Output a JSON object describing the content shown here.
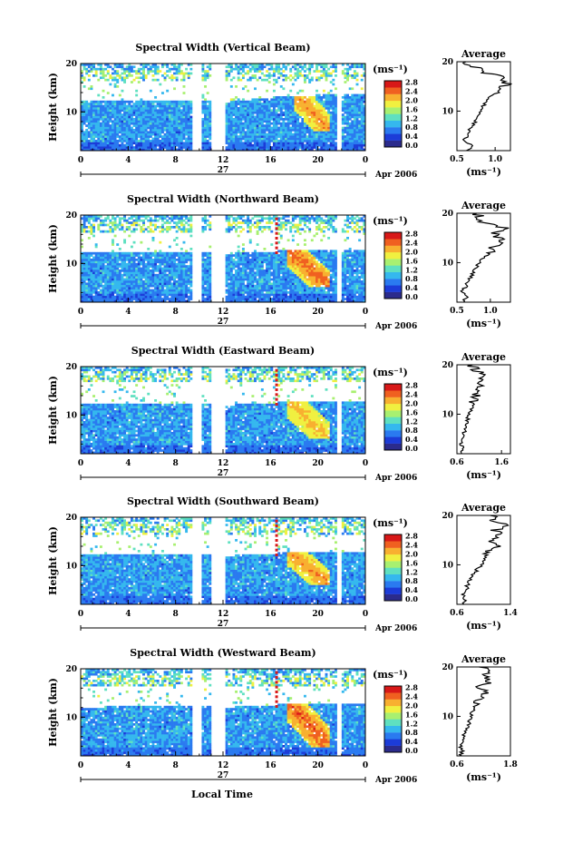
{
  "figure": {
    "xlabel": "Local Time",
    "day_label": "27",
    "date_label": "Apr 2006",
    "colorbar_unit": "(ms⁻¹)",
    "colorbar_ticks": [
      "2.8",
      "2.4",
      "2.0",
      "1.6",
      "1.2",
      "0.8",
      "0.4",
      "0.0"
    ],
    "profile_title": "Average",
    "profile_xlabel": "(ms⁻¹)",
    "ylabel": "Height (km)",
    "ytick_labels": [
      "20",
      "10"
    ],
    "xtick_labels": [
      "0",
      "4",
      "8",
      "12",
      "16",
      "20",
      "0"
    ],
    "colors": {
      "scale": [
        "#2b2b8c",
        "#1c3cd8",
        "#2a7af0",
        "#35b8ee",
        "#5fe0c0",
        "#a8f070",
        "#f0f040",
        "#f8b030",
        "#f06020",
        "#d81818"
      ],
      "profile_line": "#000000"
    }
  },
  "chart_data": [
    {
      "type": "heatmap",
      "title": "Spectral Width (Vertical Beam)",
      "xlabel": "Local Time",
      "ylabel": "Height (km)",
      "xlim": [
        0,
        24
      ],
      "ylim": [
        2,
        20
      ],
      "gaps_hours": [
        [
          9.4,
          10.2
        ],
        [
          11.1,
          12.1
        ],
        [
          21.7,
          22.0
        ]
      ],
      "upper_cutoff_km": [
        [
          0,
          12.5
        ],
        [
          8,
          12.5
        ],
        [
          12,
          12.0
        ],
        [
          16,
          13.0
        ],
        [
          20,
          13.5
        ],
        [
          24,
          13.5
        ]
      ],
      "upper_layer_km": [
        16.5,
        18.5
      ],
      "enhanced_region": {
        "t_range": [
          18,
          21
        ],
        "h_range": [
          6,
          14
        ],
        "value_ms": 2.4
      },
      "colorbar_range": [
        0.0,
        2.8
      ],
      "profile": {
        "title": "Average",
        "xlabel": "(ms⁻¹)",
        "xticks": [
          "0.5",
          "1.0"
        ],
        "xlim": [
          0.5,
          1.2
        ],
        "heights": [
          2,
          3,
          4,
          5,
          6,
          7,
          8,
          9,
          10,
          11,
          12,
          13,
          14,
          15,
          16,
          17,
          18,
          19,
          20
        ],
        "values": [
          0.62,
          0.72,
          0.58,
          0.64,
          0.66,
          0.7,
          0.74,
          0.76,
          0.8,
          0.84,
          0.9,
          0.96,
          1.0,
          1.12,
          1.16,
          1.05,
          0.82,
          0.72,
          0.62
        ]
      }
    },
    {
      "type": "heatmap",
      "title": "Spectral Width (Northward Beam)",
      "xlabel": "Local Time",
      "ylabel": "Height (km)",
      "xlim": [
        0,
        24
      ],
      "ylim": [
        2,
        20
      ],
      "gaps_hours": [
        [
          9.4,
          10.2
        ],
        [
          11.1,
          12.1
        ],
        [
          21.7,
          22.0
        ]
      ],
      "upper_cutoff_km": [
        [
          0,
          12.5
        ],
        [
          8,
          12.5
        ],
        [
          12,
          12.0
        ],
        [
          16,
          12.5
        ],
        [
          20,
          13.0
        ],
        [
          24,
          13.0
        ]
      ],
      "upper_layer_km": [
        16.5,
        18.5
      ],
      "enhanced_region": {
        "t_range": [
          17.5,
          21
        ],
        "h_range": [
          5,
          13
        ],
        "value_ms": 2.6
      },
      "colorbar_range": [
        0.0,
        2.8
      ],
      "profile": {
        "title": "Average",
        "xlabel": "(ms⁻¹)",
        "xticks": [
          "0.5",
          "1.0"
        ],
        "xlim": [
          0.5,
          1.3
        ],
        "heights": [
          2,
          3,
          4,
          5,
          6,
          7,
          8,
          9,
          10,
          11,
          12,
          13,
          14,
          15,
          16,
          17,
          18,
          19,
          20
        ],
        "values": [
          0.6,
          0.64,
          0.58,
          0.62,
          0.66,
          0.7,
          0.74,
          0.78,
          0.84,
          0.9,
          0.98,
          1.05,
          1.1,
          1.15,
          1.05,
          1.2,
          0.9,
          0.85,
          0.8
        ]
      }
    },
    {
      "type": "heatmap",
      "title": "Spectral Width (Eastward Beam)",
      "xlabel": "Local Time",
      "ylabel": "Height (km)",
      "xlim": [
        0,
        24
      ],
      "ylim": [
        2,
        20
      ],
      "gaps_hours": [
        [
          9.4,
          10.2
        ],
        [
          11.1,
          12.1
        ],
        [
          21.7,
          22.0
        ]
      ],
      "upper_cutoff_km": [
        [
          0,
          12.5
        ],
        [
          8,
          12.5
        ],
        [
          12,
          12.0
        ],
        [
          16,
          12.5
        ],
        [
          20,
          13.0
        ],
        [
          24,
          13.0
        ]
      ],
      "upper_layer_km": [
        17,
        19
      ],
      "enhanced_region": {
        "t_range": [
          17.5,
          21
        ],
        "h_range": [
          5,
          13
        ],
        "value_ms": 2.2
      },
      "colorbar_range": [
        0.0,
        2.8
      ],
      "profile": {
        "title": "Average",
        "xlabel": "(ms⁻¹)",
        "xticks": [
          "0.6",
          "1.6"
        ],
        "xlim": [
          0.6,
          1.8
        ],
        "heights": [
          2,
          3,
          4,
          5,
          6,
          7,
          8,
          9,
          10,
          11,
          12,
          13,
          14,
          15,
          16,
          17,
          18,
          19,
          20
        ],
        "values": [
          0.7,
          0.72,
          0.68,
          0.74,
          0.76,
          0.78,
          0.8,
          0.84,
          0.88,
          0.92,
          0.96,
          1.0,
          1.02,
          1.1,
          1.2,
          1.05,
          1.15,
          1.0,
          0.95
        ]
      }
    },
    {
      "type": "heatmap",
      "title": "Spectral Width (Southward Beam)",
      "xlabel": "Local Time",
      "ylabel": "Height (km)",
      "xlim": [
        0,
        24
      ],
      "ylim": [
        2,
        20
      ],
      "gaps_hours": [
        [
          9.4,
          10.2
        ],
        [
          11.1,
          12.1
        ],
        [
          21.7,
          22.0
        ]
      ],
      "upper_cutoff_km": [
        [
          0,
          12.5
        ],
        [
          8,
          12.5
        ],
        [
          12,
          12.0
        ],
        [
          16,
          12.5
        ],
        [
          20,
          13.0
        ],
        [
          24,
          13.0
        ]
      ],
      "upper_layer_km": [
        16.5,
        19
      ],
      "enhanced_region": {
        "t_range": [
          17.5,
          21
        ],
        "h_range": [
          6,
          13
        ],
        "value_ms": 2.4
      },
      "colorbar_range": [
        0.0,
        2.8
      ],
      "profile": {
        "title": "Average",
        "xlabel": "(ms⁻¹)",
        "xticks": [
          "0.6",
          "1.4"
        ],
        "xlim": [
          0.6,
          1.4
        ],
        "heights": [
          2,
          3,
          4,
          5,
          6,
          7,
          8,
          9,
          10,
          11,
          12,
          13,
          14,
          15,
          16,
          17,
          18,
          19,
          20
        ],
        "values": [
          0.7,
          0.72,
          0.7,
          0.74,
          0.76,
          0.8,
          0.84,
          0.9,
          0.96,
          1.0,
          1.06,
          1.12,
          1.2,
          1.1,
          1.25,
          1.18,
          1.3,
          1.15,
          1.1
        ]
      }
    },
    {
      "type": "heatmap",
      "title": "Spectral Width (Westward Beam)",
      "xlabel": "Local Time",
      "ylabel": "Height (km)",
      "xlim": [
        0,
        24
      ],
      "ylim": [
        2,
        20
      ],
      "gaps_hours": [
        [
          9.4,
          10.2
        ],
        [
          11.1,
          12.1
        ],
        [
          21.7,
          22.0
        ]
      ],
      "upper_cutoff_km": [
        [
          0,
          12.0
        ],
        [
          8,
          12.5
        ],
        [
          12,
          12.0
        ],
        [
          16,
          12.5
        ],
        [
          20,
          13.0
        ],
        [
          24,
          13.0
        ]
      ],
      "upper_layer_km": [
        16.5,
        18.5
      ],
      "enhanced_region": {
        "t_range": [
          17.5,
          21
        ],
        "h_range": [
          4,
          13
        ],
        "value_ms": 2.6
      },
      "colorbar_range": [
        0.0,
        2.8
      ],
      "profile": {
        "title": "Average",
        "xlabel": "(ms⁻¹)",
        "xticks": [
          "0.6",
          "1.8"
        ],
        "xlim": [
          0.6,
          1.8
        ],
        "heights": [
          2,
          3,
          4,
          5,
          6,
          7,
          8,
          9,
          10,
          11,
          12,
          13,
          14,
          15,
          16,
          17,
          18,
          19,
          20
        ],
        "values": [
          0.7,
          0.72,
          0.68,
          0.72,
          0.76,
          0.8,
          0.84,
          0.88,
          0.92,
          0.96,
          1.0,
          1.05,
          1.1,
          1.25,
          1.15,
          1.35,
          1.2,
          1.4,
          1.1
        ]
      }
    }
  ]
}
